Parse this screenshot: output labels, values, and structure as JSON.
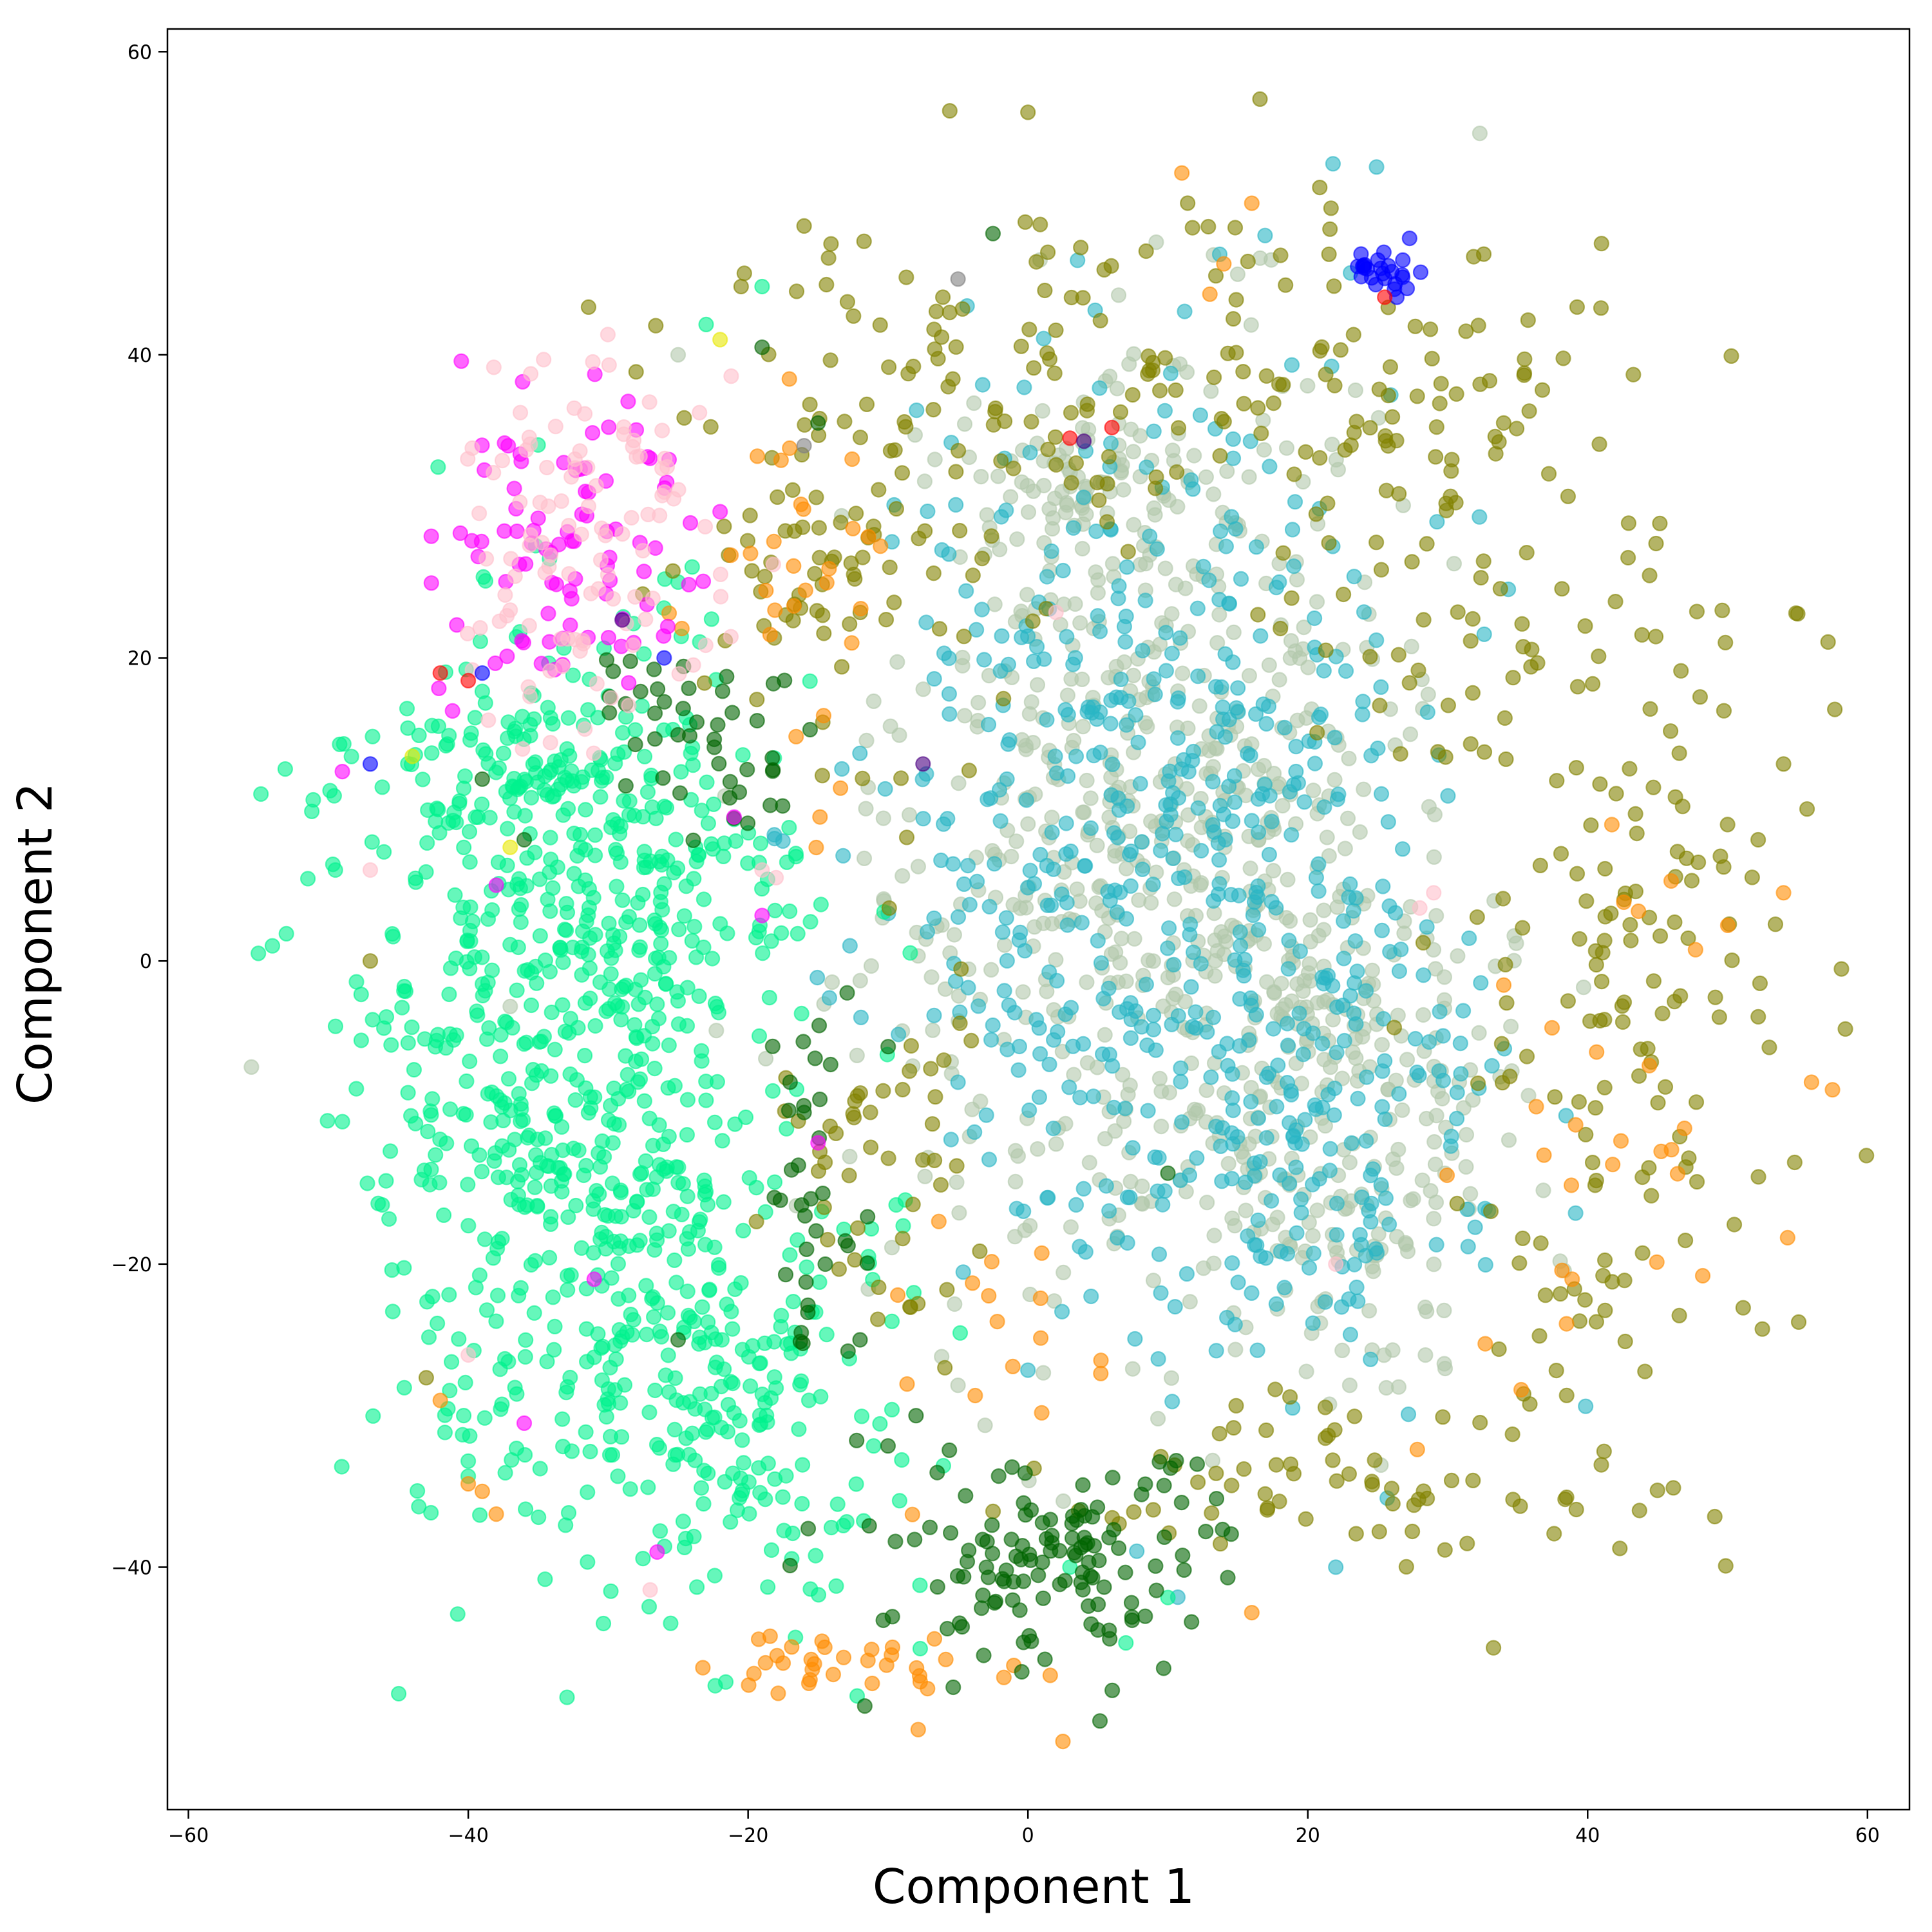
{
  "chart_data": {
    "type": "scatter",
    "title": "",
    "xlabel": "Component 1",
    "ylabel": "Component 2",
    "xlim": [
      -61.5,
      63
    ],
    "ylim": [
      -56,
      61.5
    ],
    "xticks": [
      -60,
      -40,
      -20,
      0,
      20,
      40,
      60
    ],
    "yticks": [
      -40,
      -20,
      0,
      20,
      40,
      60
    ],
    "xtick_labels": [
      "−60",
      "−40",
      "−20",
      "0",
      "20",
      "40",
      "60"
    ],
    "ytick_labels": [
      "−40",
      "−20",
      "0",
      "20",
      "40",
      "60"
    ],
    "grid": false,
    "legend": "none",
    "marker_alpha": 0.6,
    "series": [
      {
        "color": "#b2c8ab",
        "clusters": [
          {
            "cx": 9,
            "cy": 8,
            "sx": 10,
            "sy": 15,
            "n": 650,
            "seed": 1
          },
          {
            "cx": 24,
            "cy": -10,
            "sx": 6,
            "sy": 9,
            "n": 200,
            "seed": 2
          },
          {
            "cx": 4,
            "cy": 32,
            "sx": 5,
            "sy": 2,
            "n": 60,
            "seed": 3
          }
        ],
        "points": [
          [
            -55.5,
            -7
          ],
          [
            -37,
            -3
          ],
          [
            -25,
            40
          ],
          [
            -5,
            -28
          ],
          [
            23,
            -28
          ],
          [
            29,
            -17
          ]
        ]
      },
      {
        "color": "#2ab6c4",
        "clusters": [
          {
            "cx": 9,
            "cy": 8,
            "sx": 10,
            "sy": 15,
            "n": 500,
            "seed": 4
          },
          {
            "cx": 22,
            "cy": -12,
            "sx": 6,
            "sy": 8,
            "n": 150,
            "seed": 5
          }
        ],
        "points": [
          [
            22,
            -40
          ],
          [
            0,
            -27
          ],
          [
            -5,
            -8
          ]
        ]
      },
      {
        "color": "#00f28d",
        "clusters": [
          {
            "cx": -34,
            "cy": -8,
            "sx": 7,
            "sy": 14,
            "n": 550,
            "seed": 6
          },
          {
            "cx": -22,
            "cy": -28,
            "sx": 6,
            "sy": 8,
            "n": 220,
            "seed": 7
          },
          {
            "cx": -37,
            "cy": 13,
            "sx": 6,
            "sy": 3,
            "n": 110,
            "seed": 8
          },
          {
            "cx": -25,
            "cy": 2,
            "sx": 5,
            "sy": 8,
            "n": 120,
            "seed": 9
          }
        ],
        "points": [
          [
            -55,
            0.5
          ],
          [
            -54,
            1
          ],
          [
            -53,
            1.8
          ],
          [
            -19,
            44.5
          ],
          [
            -23,
            42
          ],
          [
            -25,
            25
          ],
          [
            -24,
            26
          ],
          [
            3,
            -40
          ],
          [
            7,
            -45
          ],
          [
            10,
            -42
          ],
          [
            -40,
            -33
          ],
          [
            -40,
            -34
          ]
        ]
      },
      {
        "color": "#828200",
        "clusters": [
          {
            "cx": 44,
            "cy": 0,
            "sx": 7,
            "sy": 16,
            "n": 170,
            "seed": 10
          },
          {
            "cx": 8,
            "cy": 40,
            "sx": 14,
            "sy": 7,
            "n": 130,
            "seed": 11
          },
          {
            "cx": -12,
            "cy": 28,
            "sx": 6,
            "sy": 7,
            "n": 90,
            "seed": 12
          },
          {
            "cx": 28,
            "cy": 30,
            "sx": 7,
            "sy": 8,
            "n": 80,
            "seed": 13
          },
          {
            "cx": 22,
            "cy": -34,
            "sx": 9,
            "sy": 3,
            "n": 70,
            "seed": 14
          },
          {
            "cx": -10,
            "cy": -12,
            "sx": 4,
            "sy": 8,
            "n": 50,
            "seed": 15
          }
        ],
        "points": [
          [
            0,
            56
          ],
          [
            -47,
            0
          ],
          [
            -43,
            -27.5
          ],
          [
            -16,
            48.5
          ],
          [
            -20.5,
            44.5
          ],
          [
            34,
            35.5
          ],
          [
            50,
            9
          ],
          [
            54,
            13
          ]
        ]
      },
      {
        "color": "#ff8c00",
        "clusters": [
          {
            "cx": -13,
            "cy": -46.5,
            "sx": 6,
            "sy": 1.8,
            "n": 35,
            "seed": 16
          },
          {
            "cx": 40,
            "cy": -10,
            "sx": 9,
            "sy": 12,
            "n": 30,
            "seed": 17
          },
          {
            "cx": -17,
            "cy": 25,
            "sx": 4,
            "sy": 7,
            "n": 30,
            "seed": 18
          },
          {
            "cx": -2,
            "cy": -25,
            "sx": 5,
            "sy": 4,
            "n": 16,
            "seed": 19
          }
        ],
        "points": [
          [
            11,
            52
          ],
          [
            16,
            50
          ],
          [
            13,
            44
          ],
          [
            14,
            46
          ],
          [
            2.5,
            -51.5
          ],
          [
            16,
            -43
          ],
          [
            -40,
            -34.5
          ],
          [
            -38,
            -36.5
          ],
          [
            -39,
            -35
          ],
          [
            -42,
            -29
          ],
          [
            56,
            -8
          ],
          [
            57.5,
            -8.5
          ],
          [
            54,
            4.5
          ]
        ]
      },
      {
        "color": "#006400",
        "clusters": [
          {
            "cx": 2,
            "cy": -39.5,
            "sx": 6,
            "sy": 3.5,
            "n": 130,
            "seed": 20
          },
          {
            "cx": -22,
            "cy": 14,
            "sx": 3,
            "sy": 3,
            "n": 30,
            "seed": 21
          },
          {
            "cx": -15,
            "cy": -15,
            "sx": 2,
            "sy": 7,
            "n": 35,
            "seed": 22
          },
          {
            "cx": -28,
            "cy": 17,
            "sx": 2,
            "sy": 3,
            "n": 15,
            "seed": 23
          }
        ],
        "points": [
          [
            -10,
            -32
          ],
          [
            -8,
            -30
          ],
          [
            -12,
            -25
          ],
          [
            -16,
            -10
          ],
          [
            -17,
            -8
          ],
          [
            -25,
            -25
          ],
          [
            -36,
            8
          ],
          [
            -39,
            12
          ],
          [
            -2.5,
            48
          ],
          [
            -19,
            40.5
          ],
          [
            -15,
            35.5
          ],
          [
            10,
            -14
          ]
        ]
      },
      {
        "color": "#ff00ff",
        "clusters": [
          {
            "cx": -33,
            "cy": 27,
            "sx": 5,
            "sy": 5,
            "n": 90,
            "seed": 24
          }
        ],
        "points": [
          [
            -49,
            12.5
          ],
          [
            -38,
            5
          ],
          [
            -31,
            -21
          ],
          [
            -36,
            -30.5
          ],
          [
            -26.5,
            -39
          ],
          [
            -21,
            9.5
          ],
          [
            -19,
            3
          ],
          [
            -15,
            -12
          ]
        ]
      },
      {
        "color": "#ffc0cb",
        "clusters": [
          {
            "cx": -32,
            "cy": 28,
            "sx": 5,
            "sy": 6,
            "n": 110,
            "seed": 25
          }
        ],
        "points": [
          [
            -27,
            -41.5
          ],
          [
            -40,
            -26
          ],
          [
            -19,
            6
          ],
          [
            -18,
            5.5
          ],
          [
            2,
            23
          ],
          [
            29,
            4.5
          ],
          [
            28,
            3.5
          ],
          [
            22,
            -20
          ],
          [
            -47,
            6
          ]
        ]
      },
      {
        "color": "#0000ff",
        "clusters": [
          {
            "cx": 25.5,
            "cy": 45.5,
            "sx": 1.4,
            "sy": 0.8,
            "n": 26,
            "seed": 26
          }
        ],
        "points": [
          [
            -39,
            19
          ],
          [
            -47,
            13
          ],
          [
            -26,
            20
          ]
        ]
      },
      {
        "color": "#ff0000",
        "points": [
          [
            25.5,
            43.8
          ],
          [
            -42,
            19
          ],
          [
            -40,
            18.5
          ],
          [
            3,
            34.5
          ],
          [
            6,
            35.2
          ]
        ]
      },
      {
        "color": "#4b0082",
        "points": [
          [
            -29,
            22.5
          ],
          [
            4,
            34.3
          ],
          [
            -7.5,
            13
          ]
        ]
      },
      {
        "color": "#808080",
        "points": [
          [
            -5,
            45
          ],
          [
            -16,
            34
          ]
        ]
      },
      {
        "color": "#e8e800",
        "points": [
          [
            -44,
            13.5
          ],
          [
            -37,
            7.5
          ],
          [
            -22,
            41
          ]
        ]
      }
    ]
  }
}
